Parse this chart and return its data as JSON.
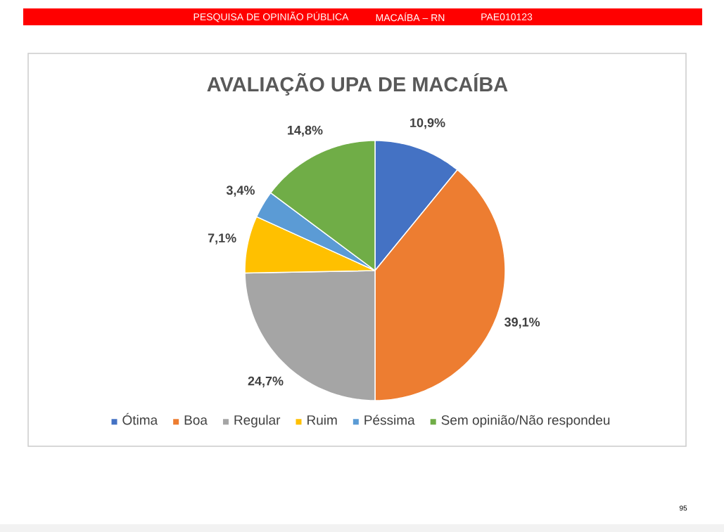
{
  "chart_data": {
    "type": "pie",
    "title": "AVALIAÇÃO UPA DE MACAÍBA",
    "categories": [
      "Ótima",
      "Boa",
      "Regular",
      "Ruim",
      "Péssima",
      "Sem opinião/Não respondeu"
    ],
    "values": [
      10.9,
      39.1,
      24.7,
      7.1,
      3.4,
      14.8
    ],
    "value_labels": [
      "10,9%",
      "39,1%",
      "24,7%",
      "7,1%",
      "3,4%",
      "14,8%"
    ],
    "colors": [
      "#4472c4",
      "#ed7d31",
      "#a5a5a5",
      "#ffc000",
      "#5b9bd5",
      "#70ad47"
    ],
    "legend": "bottom",
    "annotations": [
      "PESQUISA DE OPINIÃO PÚBLICA",
      "MACAÍBA – RN",
      "PAE010123",
      "95"
    ]
  }
}
